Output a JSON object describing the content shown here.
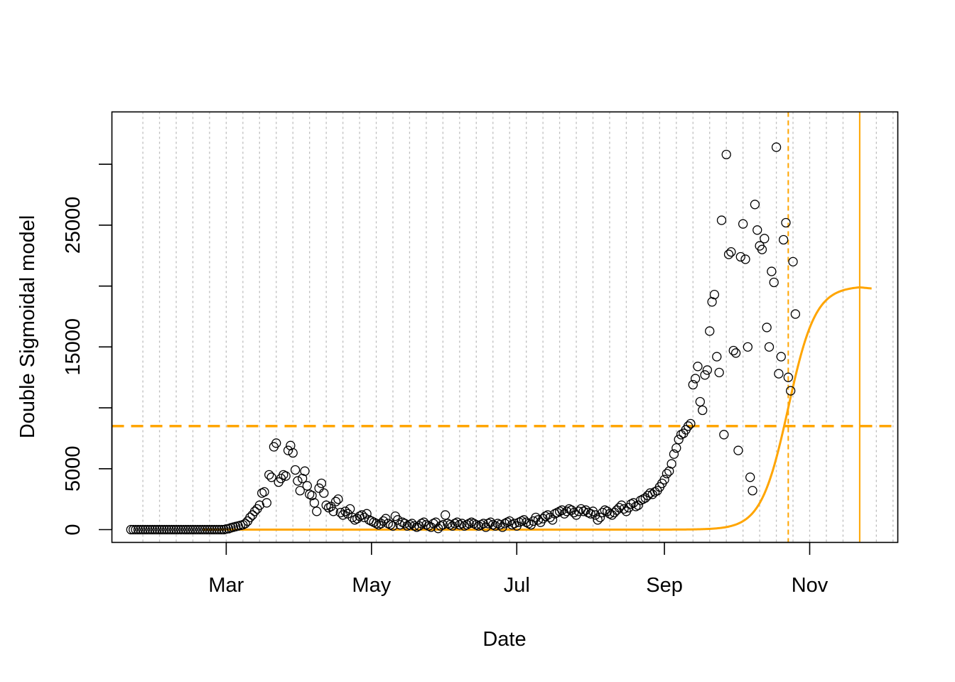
{
  "chart_data": {
    "type": "scatter",
    "title": "",
    "xlabel": "Date",
    "ylabel": "Double Sigmoidal model",
    "x_start": "2020-01-21",
    "x_end": "2020-11-27",
    "xlim": [
      "2020-01-13",
      "2020-12-08"
    ],
    "ylim": [
      -1050,
      34300
    ],
    "x_ticks": [
      {
        "date": "2020-03-01",
        "label": "Mar"
      },
      {
        "date": "2020-05-01",
        "label": "May"
      },
      {
        "date": "2020-07-01",
        "label": "Jul"
      },
      {
        "date": "2020-09-01",
        "label": "Sep"
      },
      {
        "date": "2020-11-01",
        "label": "Nov"
      }
    ],
    "y_ticks": [
      0,
      5000,
      10000,
      15000,
      20000,
      25000,
      30000
    ],
    "y_tick_labels": [
      "0",
      "5000",
      "",
      "15000",
      "",
      "25000",
      ""
    ],
    "weekly_gridlines": "dotted, grey, vertical",
    "series": [
      {
        "type": "scatter",
        "marker": "open circle",
        "color": "#000000",
        "values": [
          0,
          0,
          0,
          0,
          0,
          0,
          0,
          0,
          0,
          0,
          0,
          0,
          0,
          0,
          0,
          0,
          0,
          0,
          0,
          0,
          0,
          0,
          0,
          0,
          0,
          0,
          0,
          0,
          0,
          0,
          0,
          0,
          0,
          0,
          0,
          0,
          0,
          0,
          0,
          0,
          50,
          80,
          150,
          200,
          250,
          300,
          350,
          400,
          500,
          700,
          1000,
          1200,
          1500,
          1700,
          2000,
          3000,
          3100,
          2200,
          4500,
          4300,
          6800,
          7100,
          3900,
          4200,
          4500,
          4400,
          6500,
          6900,
          6300,
          4900,
          4000,
          3200,
          4200,
          4800,
          3600,
          2900,
          2800,
          2200,
          1500,
          3400,
          3800,
          3000,
          2000,
          1800,
          1900,
          1500,
          2300,
          2500,
          1400,
          1200,
          1500,
          1300,
          1700,
          1000,
          800,
          900,
          1100,
          1200,
          1000,
          1300,
          800,
          700,
          600,
          500,
          400,
          500,
          700,
          900,
          500,
          400,
          300,
          1100,
          800,
          400,
          600,
          500,
          300,
          400,
          500,
          300,
          200,
          300,
          500,
          600,
          400,
          300,
          200,
          500,
          600,
          100,
          300,
          400,
          1200,
          500,
          400,
          300,
          500,
          600,
          400,
          500,
          300,
          400,
          500,
          600,
          500,
          400,
          300,
          400,
          500,
          200,
          500,
          600,
          400,
          300,
          500,
          400,
          200,
          500,
          600,
          700,
          400,
          500,
          300,
          600,
          700,
          800,
          600,
          500,
          400,
          700,
          1000,
          800,
          600,
          900,
          1100,
          1200,
          1000,
          800,
          1300,
          1400,
          1500,
          1600,
          1300,
          1500,
          1700,
          1600,
          1400,
          1200,
          1500,
          1700,
          1500,
          1600,
          1400,
          1300,
          1500,
          1200,
          800,
          1000,
          1400,
          1600,
          1500,
          1300,
          1200,
          1400,
          1600,
          1800,
          2000,
          1700,
          1500,
          1800,
          2100,
          2200,
          1900,
          2000,
          2400,
          2500,
          2600,
          2800,
          3000,
          2900,
          3100,
          3200,
          3500,
          3800,
          4100,
          4600,
          4800,
          5400,
          6200,
          6700,
          7400,
          7800,
          7900,
          8200,
          8500,
          8700,
          11900,
          12400,
          13400,
          10500,
          9800,
          12700,
          13100,
          16300,
          18700,
          19300,
          14200,
          12900,
          25400,
          7800,
          30800,
          22600,
          22800,
          14700,
          14500,
          6500,
          22400,
          25100,
          22200,
          15000,
          4300,
          3200,
          26700,
          24600,
          23300,
          23000,
          23900,
          16600,
          15000,
          21200,
          20300,
          31400,
          12800,
          14200,
          23800,
          25200,
          12500,
          11400,
          22000,
          17700
        ]
      },
      {
        "type": "line",
        "name": "",
        "color": "#FFA500",
        "model": "double sigmoidal",
        "plateau": 20000,
        "midpoint_date": "2020-10-23",
        "growth_rate": 0.175,
        "peak_date": "2020-11-22",
        "end_value": 19800
      }
    ],
    "annotations": [
      {
        "type": "hline",
        "y": 8500,
        "style": "dashed",
        "color": "#FFA500"
      },
      {
        "type": "vline",
        "x": "2020-10-23",
        "style": "dashed",
        "color": "#FFA500"
      },
      {
        "type": "vline",
        "x": "2020-11-22",
        "style": "solid",
        "color": "#FFA500"
      }
    ]
  }
}
